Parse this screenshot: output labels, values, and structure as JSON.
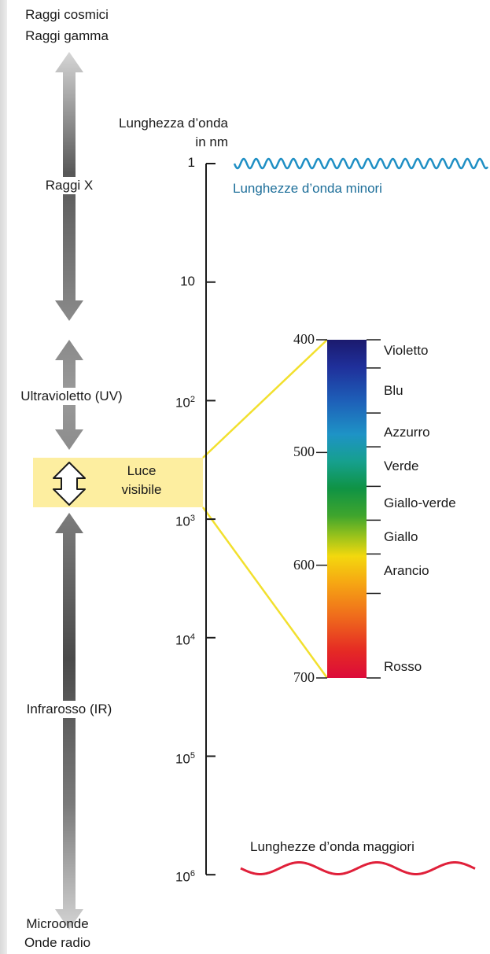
{
  "left_scale": {
    "top_label": [
      "Raggi cosmici",
      "Raggi gamma"
    ],
    "xray_label": "Raggi X",
    "uv_label": "Ultravioletto (UV)",
    "visible_label": [
      "Luce",
      "visibile"
    ],
    "ir_label": "Infrarosso (IR)",
    "bottom_label": [
      "Microonde",
      "Onde radio"
    ]
  },
  "axis": {
    "title": [
      "Lunghezza d’onda",
      "in nm"
    ],
    "ticks": [
      {
        "base": "1",
        "exp": ""
      },
      {
        "base": "10",
        "exp": ""
      },
      {
        "base": "10",
        "exp": "2"
      },
      {
        "base": "10",
        "exp": "3"
      },
      {
        "base": "10",
        "exp": "4"
      },
      {
        "base": "10",
        "exp": "5"
      },
      {
        "base": "10",
        "exp": "6"
      }
    ]
  },
  "waves": {
    "short_label": "Lunghezze d’onda minori",
    "long_label": "Lunghezze d’onda maggiori",
    "short_color": "#1f8fc4",
    "long_color": "#e0203a"
  },
  "visible_spectrum": {
    "range_nm": [
      400,
      700
    ],
    "tick_values": [
      "400",
      "500",
      "600",
      "700"
    ],
    "colors": [
      {
        "name": "Violetto",
        "nm": 410
      },
      {
        "name": "Blu",
        "nm": 445
      },
      {
        "name": "Azzurro",
        "nm": 482
      },
      {
        "name": "Verde",
        "nm": 512
      },
      {
        "name": "Giallo-verde",
        "nm": 545
      },
      {
        "name": "Giallo",
        "nm": 575
      },
      {
        "name": "Arancio",
        "nm": 605
      },
      {
        "name": "Rosso",
        "nm": 690
      }
    ],
    "color_boundaries_nm": [
      425,
      465,
      495,
      530,
      560,
      590,
      625
    ],
    "highlight_color": "#fdeea0",
    "connector_color": "#f2e02e"
  }
}
